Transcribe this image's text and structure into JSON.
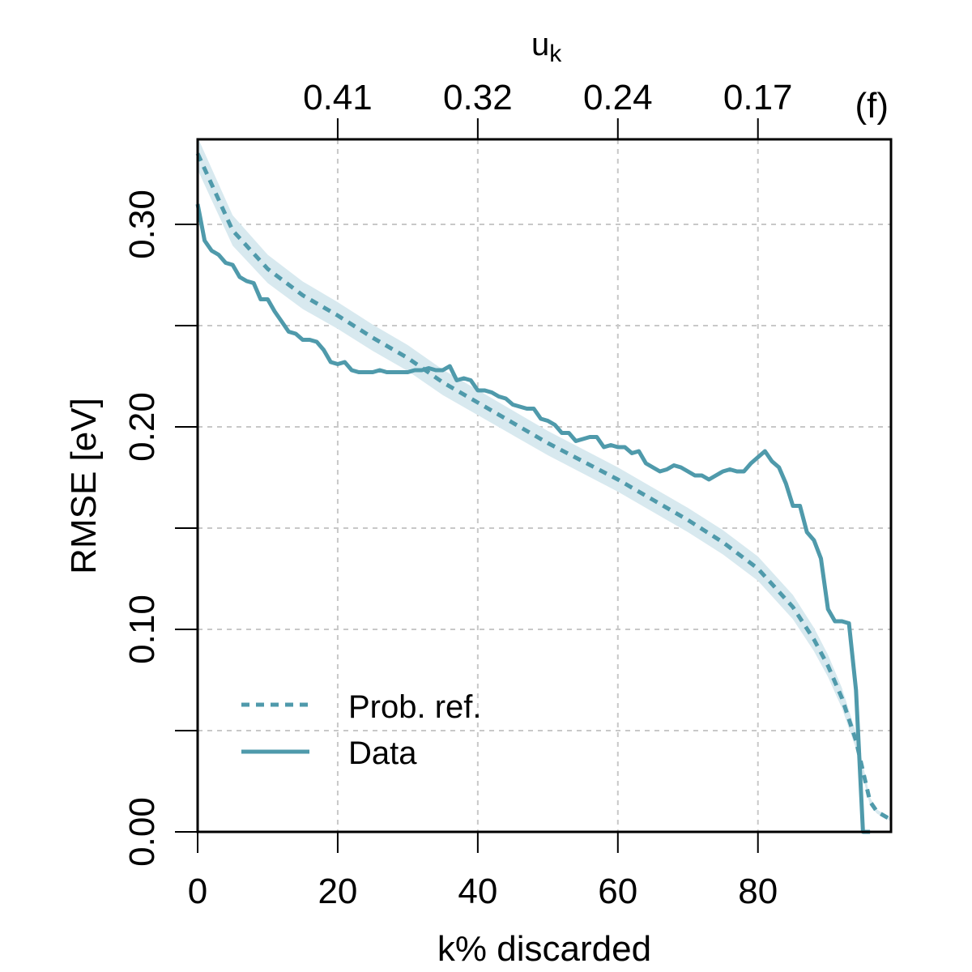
{
  "chart_data": {
    "type": "line",
    "panel_label": "(f)",
    "xlabel": "k% discarded",
    "ylabel": "RMSE [eV]",
    "top_axis_label": "u",
    "top_axis_label_sub": "k",
    "xlim": [
      0,
      99
    ],
    "ylim": [
      0,
      0.342
    ],
    "x_ticks": [
      0,
      20,
      40,
      60,
      80
    ],
    "x_tick_labels": [
      "0",
      "20",
      "40",
      "60",
      "80"
    ],
    "y_ticks": [
      0,
      0.05,
      0.1,
      0.15,
      0.2,
      0.25,
      0.3
    ],
    "y_tick_labels": [
      "0.00",
      "",
      "0.10",
      "",
      "0.20",
      "",
      "0.30"
    ],
    "top_ticks": [
      20,
      40,
      60,
      80
    ],
    "top_tick_labels": [
      "0.41",
      "0.32",
      "0.24",
      "0.17"
    ],
    "grid": true,
    "legend_position": "bottom-left",
    "colors": {
      "series": "#4f9aab",
      "band": "#d8e9ef",
      "grid": "#c8c8c8"
    },
    "series": [
      {
        "name": "Prob. ref.",
        "style": "dotted",
        "x": [
          0,
          5,
          10,
          15,
          20,
          25,
          30,
          35,
          40,
          45,
          50,
          55,
          60,
          65,
          70,
          75,
          80,
          85,
          88,
          90,
          92,
          94,
          95,
          96,
          97,
          99
        ],
        "y": [
          0.335,
          0.297,
          0.278,
          0.265,
          0.255,
          0.244,
          0.234,
          0.222,
          0.212,
          0.202,
          0.192,
          0.183,
          0.174,
          0.164,
          0.154,
          0.143,
          0.13,
          0.111,
          0.095,
          0.082,
          0.066,
          0.045,
          0.03,
          0.015,
          0.01,
          0.006
        ],
        "band_halfwidth": [
          0.008,
          0.0075,
          0.007,
          0.0068,
          0.0066,
          0.0065,
          0.0064,
          0.0063,
          0.0062,
          0.0061,
          0.006,
          0.006,
          0.006,
          0.006,
          0.006,
          0.006,
          0.006,
          0.006,
          0.0058,
          0.0055,
          0.005,
          0.004,
          0.003,
          0.002,
          0.001,
          0.0008
        ]
      },
      {
        "name": "Data",
        "style": "solid",
        "x": [
          0,
          1,
          2,
          3,
          4,
          5,
          6,
          7,
          8,
          9,
          10,
          11,
          12,
          13,
          14,
          15,
          16,
          17,
          18,
          19,
          20,
          21,
          22,
          23,
          24,
          25,
          26,
          27,
          28,
          29,
          30,
          31,
          32,
          33,
          34,
          35,
          36,
          37,
          38,
          39,
          40,
          41,
          42,
          43,
          44,
          45,
          46,
          47,
          48,
          49,
          50,
          51,
          52,
          53,
          54,
          55,
          56,
          57,
          58,
          59,
          60,
          61,
          62,
          63,
          64,
          65,
          66,
          67,
          68,
          69,
          70,
          71,
          72,
          73,
          74,
          75,
          76,
          77,
          78,
          79,
          80,
          81,
          82,
          83,
          84,
          85,
          86,
          87,
          88,
          89,
          90,
          91,
          92,
          93,
          94,
          95,
          96
        ],
        "y": [
          0.31,
          0.292,
          0.287,
          0.285,
          0.281,
          0.28,
          0.274,
          0.272,
          0.271,
          0.263,
          0.263,
          0.257,
          0.252,
          0.247,
          0.246,
          0.243,
          0.243,
          0.242,
          0.238,
          0.232,
          0.231,
          0.232,
          0.228,
          0.227,
          0.227,
          0.227,
          0.228,
          0.227,
          0.227,
          0.227,
          0.227,
          0.228,
          0.228,
          0.229,
          0.228,
          0.228,
          0.23,
          0.223,
          0.224,
          0.223,
          0.218,
          0.218,
          0.217,
          0.215,
          0.214,
          0.211,
          0.21,
          0.209,
          0.209,
          0.204,
          0.203,
          0.201,
          0.197,
          0.197,
          0.193,
          0.194,
          0.195,
          0.195,
          0.19,
          0.191,
          0.19,
          0.19,
          0.187,
          0.188,
          0.182,
          0.18,
          0.178,
          0.179,
          0.181,
          0.18,
          0.178,
          0.176,
          0.176,
          0.174,
          0.176,
          0.178,
          0.179,
          0.178,
          0.178,
          0.182,
          0.185,
          0.188,
          0.183,
          0.18,
          0.172,
          0.161,
          0.161,
          0.148,
          0.144,
          0.135,
          0.11,
          0.104,
          0.104,
          0.103,
          0.07,
          0.0,
          0.0
        ]
      }
    ]
  }
}
